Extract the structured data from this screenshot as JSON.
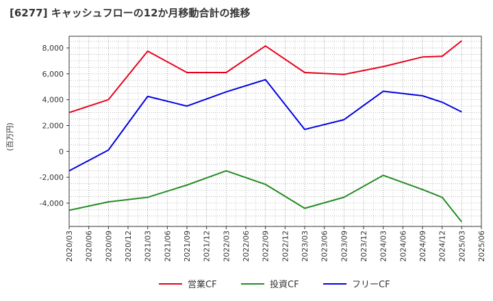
{
  "chart_data": {
    "type": "line",
    "title": "[6277]  キャッシュフローの12か月移動合計の推移",
    "ylabel": "(百万円)",
    "xlabel": "",
    "ylim": [
      -5800,
      8900
    ],
    "yticks": [
      8000,
      6000,
      4000,
      2000,
      0,
      -2000,
      -4000
    ],
    "ytick_labels": [
      "8,000",
      "6,000",
      "4,000",
      "2,000",
      "0",
      "-2,000",
      "-4,000"
    ],
    "categories": [
      "2020/03",
      "2020/06",
      "2020/09",
      "2020/12",
      "2021/03",
      "2021/06",
      "2021/09",
      "2021/12",
      "2022/03",
      "2022/06",
      "2022/09",
      "2022/12",
      "2023/03",
      "2023/06",
      "2023/09",
      "2023/12",
      "2024/03",
      "2024/06",
      "2024/09",
      "2024/12",
      "2025/03",
      "2025/06"
    ],
    "grid": true,
    "legend_position": "bottom",
    "series": [
      {
        "name": "営業CF",
        "color": "#e8001c",
        "points": [
          [
            "2020/03",
            3000
          ],
          [
            "2020/09",
            4000
          ],
          [
            "2021/03",
            7750
          ],
          [
            "2021/09",
            6100
          ],
          [
            "2022/03",
            6100
          ],
          [
            "2022/09",
            8150
          ],
          [
            "2023/03",
            6100
          ],
          [
            "2023/09",
            5950
          ],
          [
            "2024/03",
            6550
          ],
          [
            "2024/09",
            7300
          ],
          [
            "2024/12",
            7350
          ],
          [
            "2025/03",
            8550
          ]
        ]
      },
      {
        "name": "投資CF",
        "color": "#228b22",
        "points": [
          [
            "2020/03",
            -4550
          ],
          [
            "2020/09",
            -3900
          ],
          [
            "2021/03",
            -3550
          ],
          [
            "2021/09",
            -2600
          ],
          [
            "2022/03",
            -1500
          ],
          [
            "2022/09",
            -2550
          ],
          [
            "2023/03",
            -4400
          ],
          [
            "2023/09",
            -3550
          ],
          [
            "2024/03",
            -1850
          ],
          [
            "2024/09",
            -2950
          ],
          [
            "2024/12",
            -3550
          ],
          [
            "2025/03",
            -5450
          ]
        ]
      },
      {
        "name": "フリーCF",
        "color": "#0000e0",
        "points": [
          [
            "2020/03",
            -1500
          ],
          [
            "2020/09",
            100
          ],
          [
            "2021/03",
            4250
          ],
          [
            "2021/09",
            3500
          ],
          [
            "2022/03",
            4600
          ],
          [
            "2022/09",
            5550
          ],
          [
            "2023/03",
            1700
          ],
          [
            "2023/09",
            2450
          ],
          [
            "2024/03",
            4650
          ],
          [
            "2024/09",
            4300
          ],
          [
            "2024/12",
            3800
          ],
          [
            "2025/03",
            3050
          ]
        ]
      }
    ]
  }
}
